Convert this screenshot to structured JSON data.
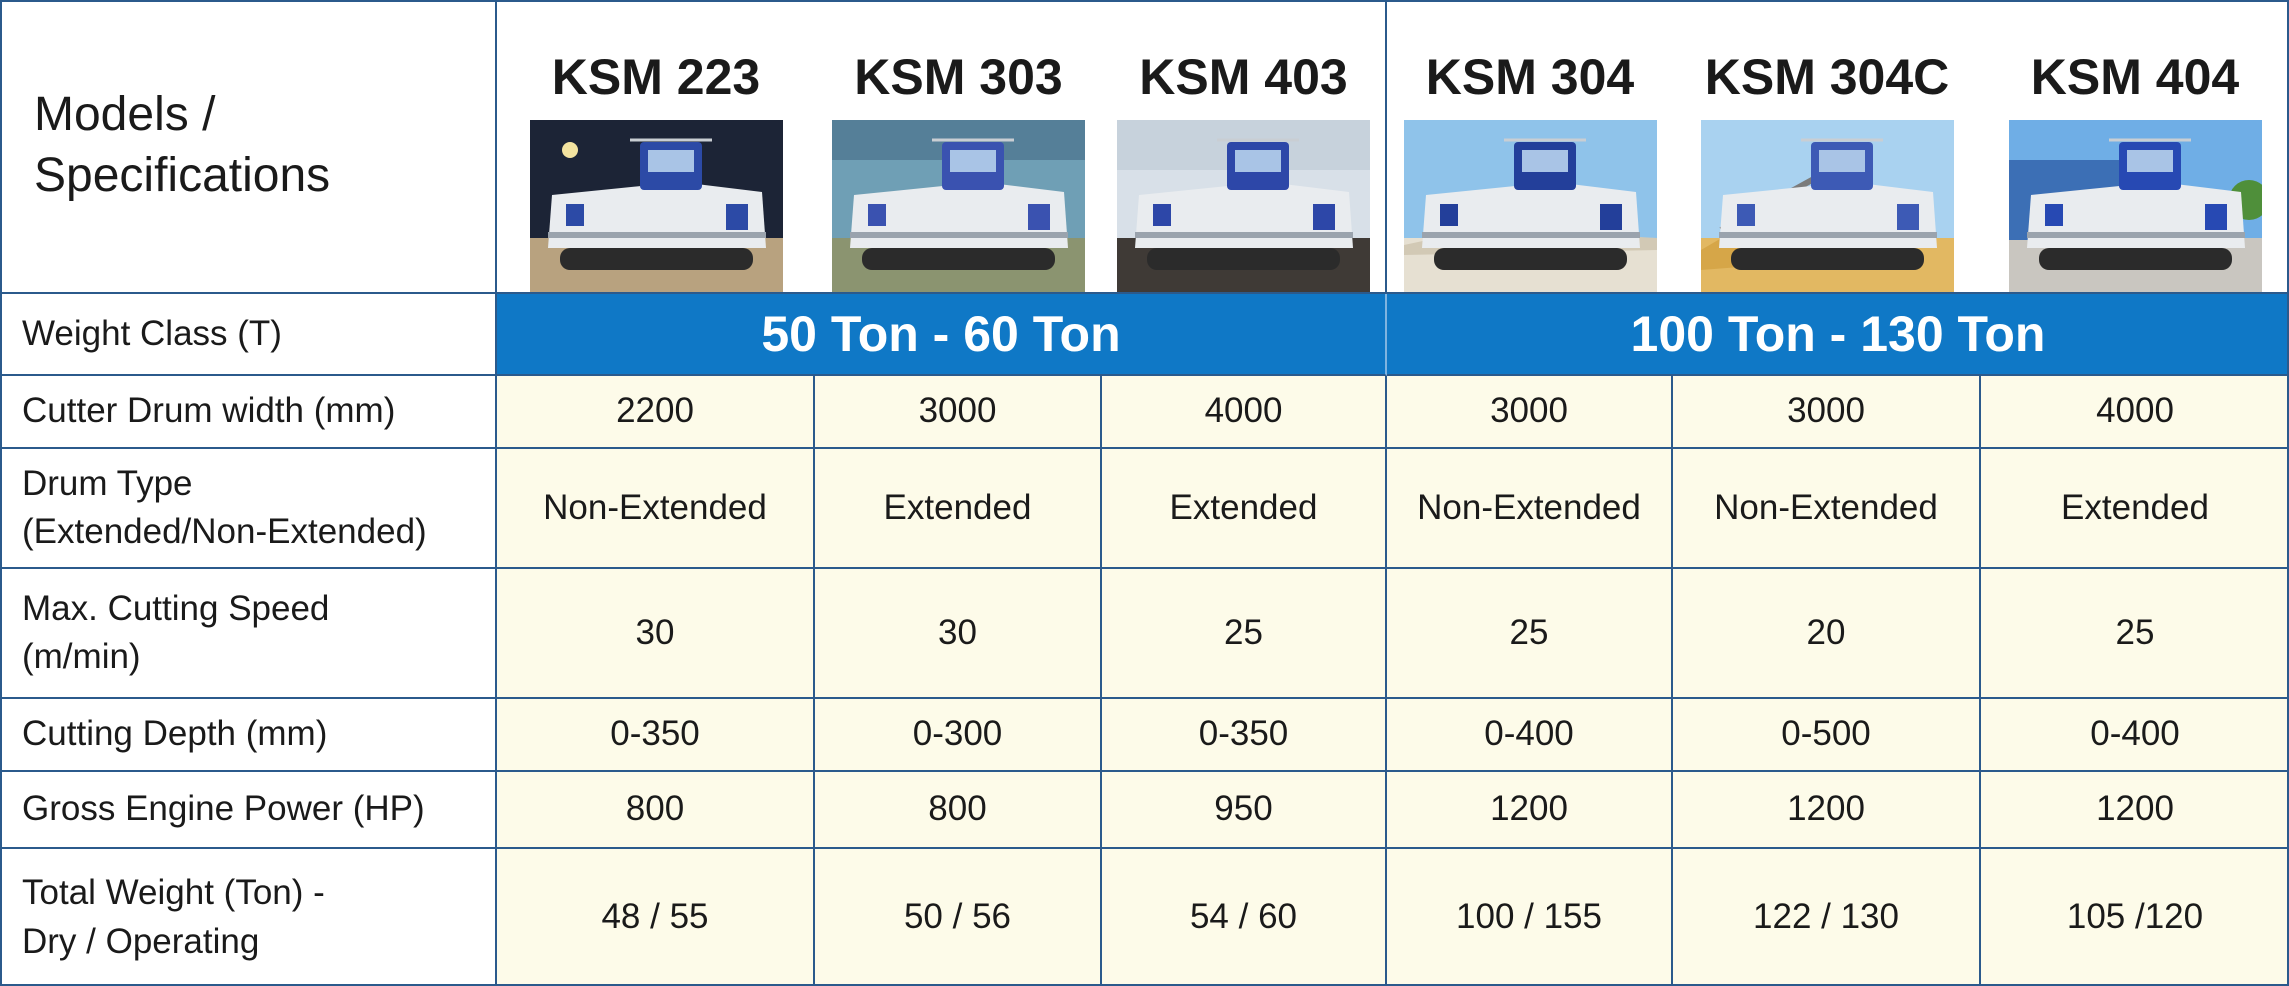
{
  "header": {
    "corner_line1": "Models /",
    "corner_line2": "Specifications"
  },
  "models": [
    {
      "name": "KSM 223",
      "photo": {
        "sky": "#1c2436",
        "ground": "#b8a27f",
        "cab": "#2c4aa6",
        "background": "night"
      }
    },
    {
      "name": "KSM 303",
      "photo": {
        "sky": "#6f9fb5",
        "ground": "#8b9470",
        "cab": "#3a52b0",
        "background": "indoor"
      }
    },
    {
      "name": "KSM 403",
      "photo": {
        "sky": "#d8e0e8",
        "ground": "#3f3a36",
        "cab": "#2d47a8",
        "background": "mine"
      }
    },
    {
      "name": "KSM 304",
      "photo": {
        "sky": "#8fc3ea",
        "ground": "#e6e0d2",
        "cab": "#233f9a",
        "background": "quarry"
      }
    },
    {
      "name": "KSM 304C",
      "photo": {
        "sky": "#a9d2f0",
        "ground": "#e2b862",
        "cab": "#3d5ab5",
        "background": "desert"
      }
    },
    {
      "name": "KSM 404",
      "photo": {
        "sky": "#6faee6",
        "ground": "#c9c6c0",
        "cab": "#2749b3",
        "background": "factory"
      }
    }
  ],
  "weight_class": {
    "label": "Weight Class (T)",
    "groups": [
      {
        "text": "50 Ton - 60 Ton",
        "span": 3
      },
      {
        "text": "100 Ton - 130 Ton",
        "span": 3
      }
    ]
  },
  "rows": [
    {
      "label_line1": "Cutter Drum width (mm)",
      "label_line2": "",
      "values": [
        "2200",
        "3000",
        "4000",
        "3000",
        "3000",
        "4000"
      ]
    },
    {
      "label_line1": "Drum Type",
      "label_line2": "(Extended/Non-Extended)",
      "values": [
        "Non-Extended",
        "Extended",
        "Extended",
        "Non-Extended",
        "Non-Extended",
        "Extended"
      ]
    },
    {
      "label_line1": "Max. Cutting Speed",
      "label_line2": "(m/min)",
      "values": [
        "30",
        "30",
        "25",
        "25",
        "20",
        "25"
      ]
    },
    {
      "label_line1": "Cutting Depth (mm)",
      "label_line2": "",
      "values": [
        "0-350",
        "0-300",
        "0-350",
        "0-400",
        "0-500",
        "0-400"
      ]
    },
    {
      "label_line1": "Gross Engine Power (HP)",
      "label_line2": "",
      "values": [
        "800",
        "800",
        "950",
        "1200",
        "1200",
        "1200"
      ]
    },
    {
      "label_line1": "Total Weight (Ton) -",
      "label_line2": "Dry / Operating",
      "values": [
        "48 / 55",
        "50 / 56",
        "54 / 60",
        "100 / 155",
        "122 / 130",
        "105 /120"
      ]
    }
  ],
  "colors": {
    "band": "#0f78c6",
    "cell_background": "#fdfbe9",
    "grid_lines": "#2b5a8c"
  }
}
